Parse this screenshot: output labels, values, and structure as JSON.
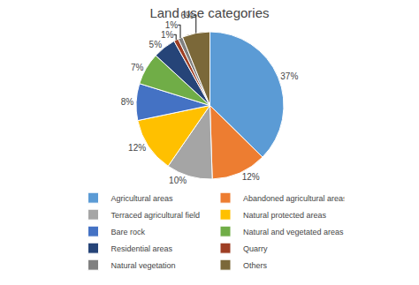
{
  "chart_data": {
    "type": "pie",
    "title": "Land use categories",
    "categories": [
      "Agricultural areas",
      "Abandoned agricultural areas",
      "Terraced agricultural field",
      "Natural protected areas",
      "Bare rock",
      "Natural and vegetated areas",
      "Residential areas",
      "Quarry",
      "Natural vegetation",
      "Others"
    ],
    "values": [
      37,
      12,
      10,
      12,
      8,
      7,
      5,
      1,
      1,
      6
    ],
    "value_labels": [
      "37%",
      "12%",
      "10%",
      "12%",
      "8%",
      "7%",
      "5%",
      "1%",
      "1%",
      "6%"
    ],
    "colors": [
      "#5B9BD5",
      "#ED7D31",
      "#A5A5A5",
      "#FFC000",
      "#4472C4",
      "#70AD47",
      "#264478",
      "#9E3E24",
      "#808080",
      "#7B6839"
    ],
    "data_labels": true,
    "legend": "bottom"
  }
}
